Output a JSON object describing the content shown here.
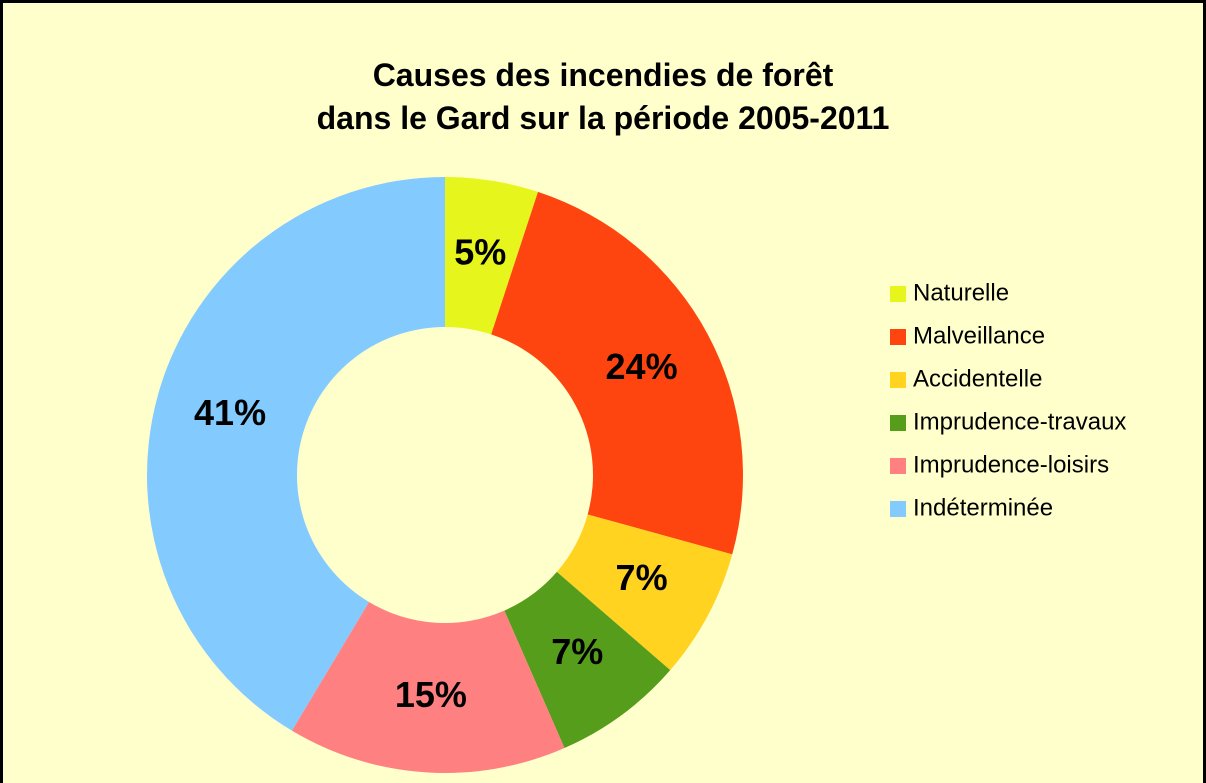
{
  "chart_data": {
    "type": "donut",
    "title": [
      "Causes des incendies de forêt",
      "dans le Gard sur la période 2005-2011"
    ],
    "categories": [
      "Naturelle",
      "Malveillance",
      "Accidentelle",
      "Imprudence-travaux",
      "Imprudence-loisirs",
      "Indéterminée"
    ],
    "values": [
      5,
      24,
      7,
      7,
      15,
      41
    ],
    "value_labels": [
      "5%",
      "24%",
      "7%",
      "7%",
      "15%",
      "41%"
    ],
    "colors": [
      "#e6f51c",
      "#ff450f",
      "#ffd320",
      "#579d1c",
      "#ff8080",
      "#83caff"
    ],
    "legend": "right"
  }
}
